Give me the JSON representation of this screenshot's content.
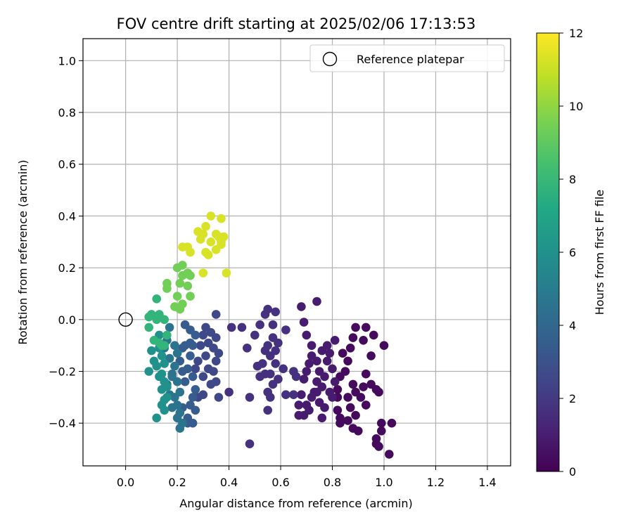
{
  "chart_data": {
    "type": "scatter",
    "title": "FOV centre drift starting at 2025/02/06 17:13:53",
    "xlabel": "Angular distance from reference (arcmin)",
    "ylabel": "Rotation from reference (arcmin)",
    "xlim": [
      -0.165,
      1.49
    ],
    "ylim": [
      -0.565,
      1.085
    ],
    "x_ticks": [
      "0.0",
      "0.2",
      "0.4",
      "0.6",
      "0.8",
      "1.0",
      "1.2",
      "1.4"
    ],
    "y_ticks": [
      "−0.4",
      "−0.2",
      "0.0",
      "0.2",
      "0.4",
      "0.6",
      "0.8",
      "1.0"
    ],
    "grid": true,
    "legend": {
      "position": "top-right",
      "entries": [
        "Reference platepar"
      ]
    },
    "reference_point": {
      "x": 0.0,
      "y": 0.0
    },
    "colorbar": {
      "label": "Hours from first FF file",
      "colormap": "viridis",
      "range": [
        0,
        12
      ],
      "ticks": [
        "0",
        "2",
        "4",
        "6",
        "8",
        "10",
        "12"
      ]
    },
    "series": [
      {
        "points": [
          [
            0.97,
            -0.48
          ],
          [
            1.02,
            -0.52
          ],
          [
            0.99,
            -0.4
          ],
          [
            1.03,
            -0.4
          ],
          [
            0.99,
            -0.43
          ],
          [
            0.97,
            -0.46
          ],
          [
            0.98,
            -0.49
          ],
          [
            0.91,
            -0.3
          ],
          [
            0.93,
            -0.33
          ],
          [
            0.92,
            -0.26
          ],
          [
            0.95,
            -0.25
          ],
          [
            0.97,
            -0.27
          ],
          [
            0.98,
            -0.28
          ],
          [
            0.93,
            -0.21
          ],
          [
            0.95,
            -0.14
          ],
          [
            0.92,
            -0.08
          ],
          [
            0.93,
            -0.03
          ],
          [
            0.96,
            -0.06
          ],
          [
            1.0,
            -0.1
          ],
          [
            0.89,
            -0.28
          ],
          [
            0.88,
            -0.25
          ],
          [
            0.87,
            -0.34
          ],
          [
            0.86,
            -0.39
          ],
          [
            0.88,
            -0.42
          ],
          [
            0.89,
            -0.37
          ],
          [
            0.9,
            -0.43
          ],
          [
            0.85,
            -0.2
          ],
          [
            0.86,
            -0.16
          ],
          [
            0.87,
            -0.11
          ],
          [
            0.88,
            -0.07
          ],
          [
            0.89,
            -0.03
          ],
          [
            0.84,
            -0.13
          ],
          [
            0.83,
            -0.22
          ],
          [
            0.82,
            -0.27
          ],
          [
            0.82,
            -0.3
          ],
          [
            0.82,
            -0.35
          ],
          [
            0.83,
            -0.38
          ],
          [
            0.83,
            -0.4
          ],
          [
            0.86,
            -0.3
          ]
        ],
        "t": 0.3
      },
      {
        "points": [
          [
            0.78,
            -0.16
          ],
          [
            0.8,
            -0.19
          ],
          [
            0.81,
            -0.24
          ],
          [
            0.79,
            -0.13
          ],
          [
            0.76,
            -0.12
          ],
          [
            0.74,
            -0.16
          ],
          [
            0.75,
            -0.2
          ],
          [
            0.77,
            -0.22
          ],
          [
            0.76,
            -0.26
          ],
          [
            0.74,
            -0.28
          ],
          [
            0.72,
            -0.3
          ],
          [
            0.7,
            -0.33
          ],
          [
            0.69,
            -0.37
          ],
          [
            0.71,
            -0.35
          ],
          [
            0.73,
            -0.28
          ],
          [
            0.74,
            -0.24
          ],
          [
            0.77,
            -0.34
          ],
          [
            0.79,
            -0.28
          ],
          [
            0.8,
            -0.3
          ],
          [
            0.72,
            -0.14
          ],
          [
            0.72,
            -0.1
          ],
          [
            0.7,
            -0.06
          ],
          [
            0.69,
            -0.01
          ],
          [
            0.68,
            0.05
          ],
          [
            0.74,
            0.07
          ],
          [
            0.71,
            -0.17
          ],
          [
            0.7,
            -0.2
          ],
          [
            0.69,
            -0.23
          ],
          [
            0.68,
            -0.29
          ],
          [
            0.67,
            -0.33
          ],
          [
            0.67,
            -0.37
          ],
          [
            0.76,
            -0.38
          ],
          [
            0.81,
            -0.08
          ],
          [
            0.78,
            -0.1
          ],
          [
            0.75,
            -0.32
          ]
        ],
        "t": 0.9
      },
      {
        "points": [
          [
            0.62,
            -0.04
          ],
          [
            0.59,
            -0.09
          ],
          [
            0.57,
            -0.07
          ],
          [
            0.55,
            -0.1
          ],
          [
            0.56,
            -0.14
          ],
          [
            0.58,
            -0.17
          ],
          [
            0.56,
            -0.21
          ],
          [
            0.57,
            -0.25
          ],
          [
            0.59,
            -0.23
          ],
          [
            0.61,
            -0.19
          ],
          [
            0.65,
            -0.2
          ],
          [
            0.66,
            -0.22
          ],
          [
            0.62,
            -0.29
          ],
          [
            0.65,
            -0.29
          ],
          [
            0.55,
            -0.28
          ],
          [
            0.56,
            -0.3
          ],
          [
            0.54,
            -0.21
          ],
          [
            0.53,
            -0.17
          ],
          [
            0.51,
            -0.18
          ],
          [
            0.52,
            -0.22
          ],
          [
            0.5,
            -0.06
          ],
          [
            0.52,
            -0.02
          ],
          [
            0.54,
            0.02
          ],
          [
            0.55,
            0.04
          ],
          [
            0.58,
            0.03
          ],
          [
            0.57,
            -0.02
          ],
          [
            0.48,
            -0.3
          ],
          [
            0.48,
            -0.48
          ],
          [
            0.47,
            -0.11
          ],
          [
            0.45,
            -0.03
          ],
          [
            0.41,
            -0.03
          ],
          [
            0.4,
            -0.28
          ],
          [
            0.54,
            -0.12
          ],
          [
            0.58,
            -0.12
          ],
          [
            0.55,
            -0.35
          ]
        ],
        "t": 1.7
      },
      {
        "points": [
          [
            0.36,
            -0.3
          ],
          [
            0.35,
            -0.24
          ],
          [
            0.34,
            -0.2
          ],
          [
            0.35,
            -0.16
          ],
          [
            0.34,
            -0.11
          ],
          [
            0.35,
            -0.07
          ],
          [
            0.35,
            0.02
          ],
          [
            0.36,
            -0.13
          ],
          [
            0.33,
            -0.05
          ],
          [
            0.32,
            -0.09
          ],
          [
            0.31,
            -0.14
          ],
          [
            0.32,
            -0.19
          ],
          [
            0.33,
            -0.25
          ],
          [
            0.3,
            -0.29
          ],
          [
            0.31,
            -0.03
          ],
          [
            0.3,
            -0.06
          ],
          [
            0.29,
            -0.1
          ],
          [
            0.28,
            -0.16
          ],
          [
            0.27,
            -0.19
          ],
          [
            0.3,
            -0.22
          ],
          [
            0.28,
            -0.3
          ]
        ],
        "t": 2.6
      },
      {
        "points": [
          [
            0.27,
            -0.06
          ],
          [
            0.26,
            -0.1
          ],
          [
            0.25,
            -0.04
          ],
          [
            0.25,
            -0.14
          ],
          [
            0.24,
            -0.19
          ],
          [
            0.26,
            -0.22
          ],
          [
            0.27,
            -0.27
          ],
          [
            0.26,
            -0.3
          ],
          [
            0.25,
            -0.33
          ],
          [
            0.24,
            -0.38
          ],
          [
            0.23,
            -0.1
          ],
          [
            0.23,
            -0.24
          ],
          [
            0.22,
            -0.34
          ],
          [
            0.26,
            -0.4
          ],
          [
            0.24,
            -0.4
          ],
          [
            0.23,
            -0.02
          ],
          [
            0.22,
            -0.11
          ],
          [
            0.21,
            -0.16
          ],
          [
            0.22,
            -0.2
          ],
          [
            0.25,
            -0.09
          ],
          [
            0.27,
            -0.35
          ]
        ],
        "t": 3.5
      },
      {
        "points": [
          [
            0.2,
            -0.13
          ],
          [
            0.19,
            -0.18
          ],
          [
            0.2,
            -0.24
          ],
          [
            0.21,
            -0.28
          ],
          [
            0.2,
            -0.38
          ],
          [
            0.21,
            -0.42
          ],
          [
            0.22,
            -0.4
          ],
          [
            0.19,
            -0.3
          ],
          [
            0.18,
            -0.21
          ],
          [
            0.17,
            -0.15
          ],
          [
            0.16,
            -0.08
          ],
          [
            0.17,
            -0.03
          ],
          [
            0.15,
            -0.11
          ],
          [
            0.16,
            -0.25
          ],
          [
            0.17,
            -0.29
          ],
          [
            0.18,
            -0.34
          ],
          [
            0.18,
            -0.22
          ],
          [
            0.19,
            -0.1
          ],
          [
            0.2,
            -0.33
          ],
          [
            0.21,
            -0.36
          ]
        ],
        "t": 4.6
      },
      {
        "points": [
          [
            0.15,
            -0.17
          ],
          [
            0.14,
            -0.21
          ],
          [
            0.14,
            -0.27
          ],
          [
            0.15,
            -0.31
          ],
          [
            0.16,
            -0.3
          ],
          [
            0.13,
            -0.06
          ],
          [
            0.14,
            -0.14
          ],
          [
            0.13,
            -0.11
          ],
          [
            0.12,
            -0.18
          ],
          [
            0.12,
            -0.38
          ],
          [
            0.11,
            -0.16
          ],
          [
            0.1,
            -0.12
          ],
          [
            0.09,
            -0.2
          ],
          [
            0.15,
            -0.24
          ],
          [
            0.15,
            -0.35
          ],
          [
            0.16,
            -0.26
          ],
          [
            0.14,
            -0.33
          ],
          [
            0.13,
            -0.22
          ]
        ],
        "t": 6.0
      },
      {
        "points": [
          [
            0.09,
            0.01
          ],
          [
            0.1,
            0.02
          ],
          [
            0.12,
            0.0
          ],
          [
            0.09,
            -0.03
          ],
          [
            0.11,
            -0.08
          ],
          [
            0.13,
            0.02
          ],
          [
            0.15,
            0.0
          ],
          [
            0.13,
            -0.09
          ],
          [
            0.16,
            -0.06
          ],
          [
            0.14,
            -0.1
          ],
          [
            0.15,
            -0.1
          ],
          [
            0.12,
            0.08
          ]
        ],
        "t": 7.8
      },
      {
        "points": [
          [
            0.21,
            0.04
          ],
          [
            0.22,
            0.06
          ],
          [
            0.19,
            0.05
          ],
          [
            0.2,
            0.09
          ],
          [
            0.25,
            0.09
          ],
          [
            0.21,
            0.14
          ],
          [
            0.16,
            0.14
          ],
          [
            0.16,
            0.12
          ],
          [
            0.24,
            0.13
          ],
          [
            0.2,
            0.2
          ],
          [
            0.22,
            0.21
          ],
          [
            0.22,
            0.17
          ],
          [
            0.24,
            0.18
          ],
          [
            0.25,
            0.17
          ]
        ],
        "t": 9.4
      },
      {
        "points": [
          [
            0.22,
            0.28
          ],
          [
            0.24,
            0.28
          ],
          [
            0.25,
            0.26
          ],
          [
            0.28,
            0.34
          ],
          [
            0.29,
            0.31
          ],
          [
            0.3,
            0.33
          ],
          [
            0.31,
            0.26
          ],
          [
            0.32,
            0.25
          ],
          [
            0.3,
            0.18
          ],
          [
            0.33,
            0.3
          ],
          [
            0.35,
            0.27
          ],
          [
            0.36,
            0.32
          ],
          [
            0.35,
            0.33
          ],
          [
            0.37,
            0.3
          ],
          [
            0.37,
            0.29
          ],
          [
            0.38,
            0.32
          ],
          [
            0.33,
            0.4
          ],
          [
            0.37,
            0.39
          ],
          [
            0.39,
            0.18
          ],
          [
            0.31,
            0.36
          ]
        ],
        "t": 11.3
      }
    ]
  }
}
